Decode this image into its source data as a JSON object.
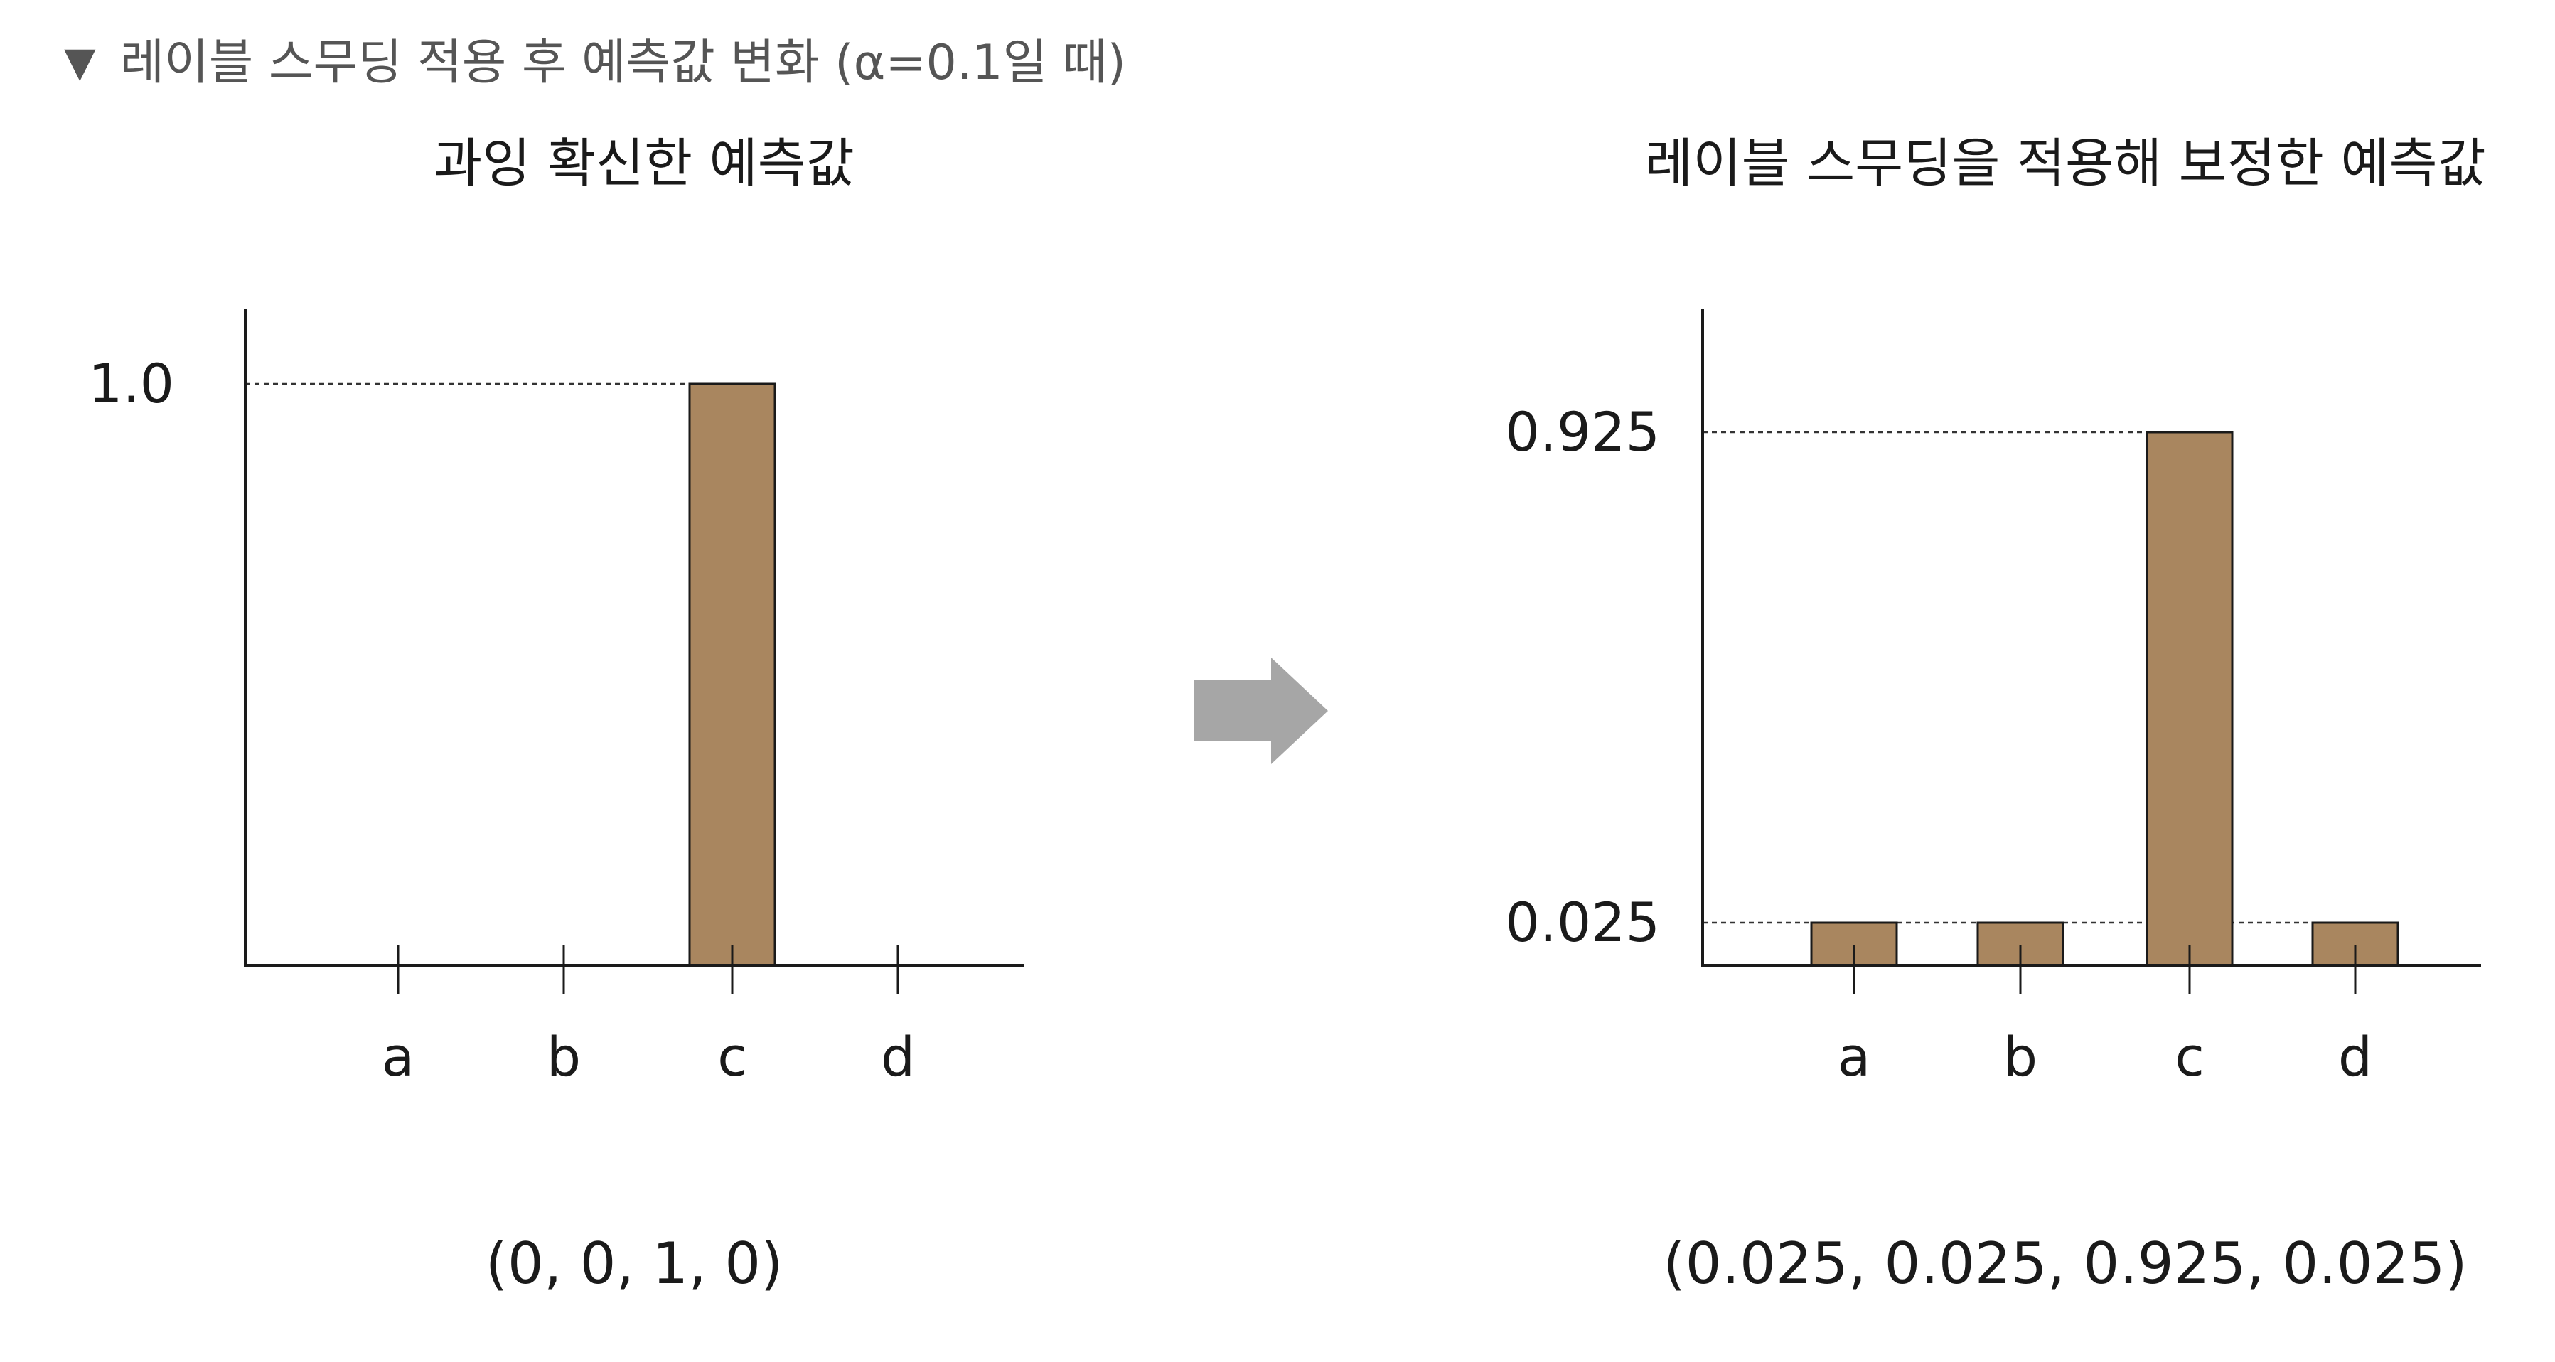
{
  "caption": {
    "marker": "▼",
    "text": "레이블 스무딩 적용 후 예측값 변화 (α=0.1일 때)"
  },
  "panels": [
    {
      "title": "과잉 확신한 예측값",
      "vector": "(0, 0, 1, 0)"
    },
    {
      "title": "레이블 스무딩을 적용해 보정한 예측값",
      "vector": "(0.025, 0.025, 0.925, 0.025)"
    }
  ],
  "arrow": {
    "icon": "right-arrow-icon",
    "color": "#a6a6a6"
  },
  "chart_data": [
    {
      "type": "bar",
      "title": "과잉 확신한 예측값",
      "categories": [
        "a",
        "b",
        "c",
        "d"
      ],
      "values": [
        0,
        0,
        1,
        0
      ],
      "yticks": [
        {
          "value": 1,
          "label": "1.0"
        }
      ],
      "ylim": [
        0,
        1
      ],
      "reference_lines": [
        1
      ],
      "grid": false,
      "bar_color": "#a9865f"
    },
    {
      "type": "bar",
      "title": "레이블 스무딩을 적용해 보정한 예측값",
      "categories": [
        "a",
        "b",
        "c",
        "d"
      ],
      "values": [
        0.025,
        0.025,
        0.925,
        0.025
      ],
      "yticks": [
        {
          "value": 0.925,
          "label": "0.925"
        },
        {
          "value": 0.025,
          "label": "0.025"
        }
      ],
      "ylim": [
        0,
        1.05
      ],
      "reference_lines": [
        0.925,
        0.025
      ],
      "grid": false,
      "bar_color": "#a9865f"
    }
  ]
}
